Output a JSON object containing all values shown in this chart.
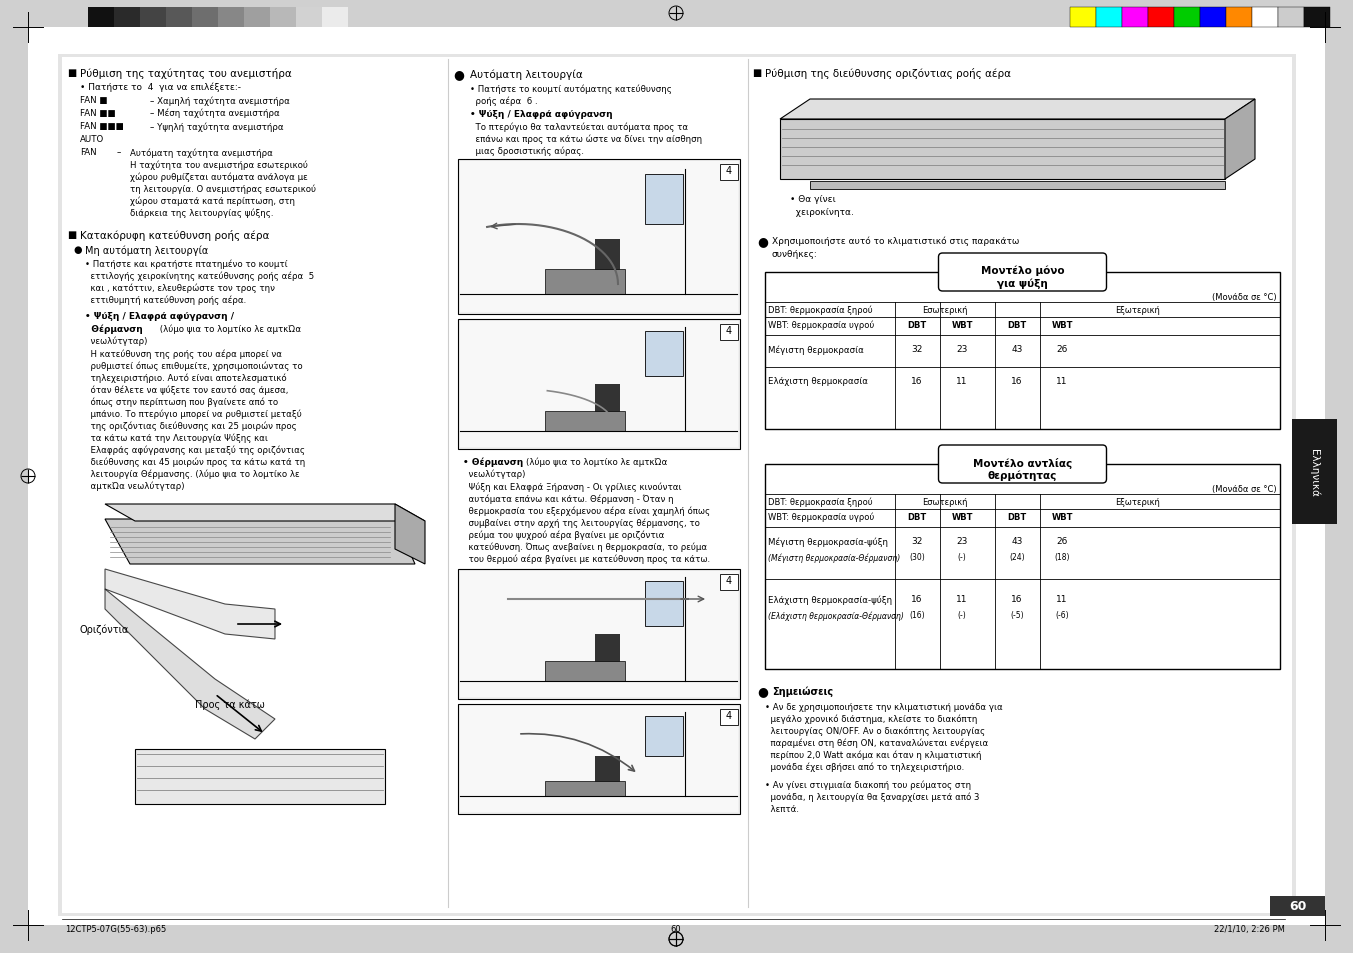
{
  "page_bg": "#d0d0d0",
  "content_bg": "#ffffff",
  "panel_bg": "#e0e0e0",
  "header_colors_left": [
    "#111111",
    "#2a2a2a",
    "#444444",
    "#585858",
    "#6e6e6e",
    "#878787",
    "#9f9f9f",
    "#b8b8b8",
    "#d2d2d2",
    "#ebebeb"
  ],
  "header_colors_right": [
    "#ffff00",
    "#00ffff",
    "#ff00ff",
    "#ff0000",
    "#00cc00",
    "#0000ff",
    "#ff8800",
    "#ffffff",
    "#cccccc",
    "#111111"
  ],
  "page_number": "60",
  "side_tab_text": "Ελληνικά",
  "col1_title": "Ρύθμιση της ταχύτητας του ανεμιστήρα",
  "col3_title": "Ρύθμιση της διεύθυνσης οριζόντιας ροής αέρα",
  "table1_title": "Μοντέλο μόνο\nγια ψύξη",
  "table2_title": "Μοντέλο αντλίας\nθερμότητας",
  "unit_label": "(Μονάδα σε °C)",
  "dbt_label": "DBT: θερμοκρασία ξηρού",
  "wbt_label": "WBT: θερμοκρασία υγρού",
  "esoterike": "Εσωτερική",
  "exoterike": "Εξωτερική",
  "megiste": "Μέγιστη θερμοκρασία",
  "elaxiste": "Ελάχιστη θερμοκρασία",
  "megiste2a": "Μέγιστη θερμοκρασία-ψύξη",
  "megiste2b": "(Μέγιστη θερμοκρασία-Θέρμανση)",
  "elaxiste2a": "Ελάχιστη θερμοκρασία-ψύξη",
  "elaxiste2b": "(Ελάχιστη θερμοκρασία-Θέρμανση)",
  "notes_title": "Σημειώσεις",
  "footer_left": "12CTP5-07G(55-63).p65",
  "footer_center": "60",
  "footer_right": "22/1/10, 2:26 PM"
}
